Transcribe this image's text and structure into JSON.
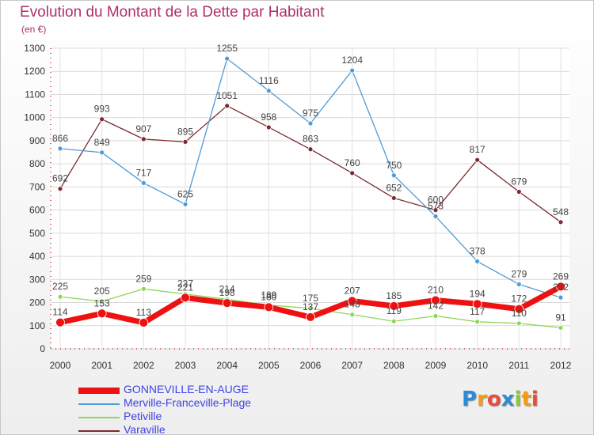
{
  "header": {
    "title": "Evolution du Montant de la Dette par Habitant",
    "subtitle": "(en €)"
  },
  "logo": {
    "letters": [
      "P",
      "r",
      "o",
      "x",
      "i",
      "t",
      "i"
    ],
    "colors": [
      "#2c8bd6",
      "#f39c12",
      "#e74c3c",
      "#2c8bd6",
      "#8dc63f",
      "#f39c12",
      "#e74c3c"
    ]
  },
  "chart_data": {
    "type": "line",
    "title": "Evolution du Montant de la Dette par Habitant",
    "subtitle": "(en €)",
    "xlabel": "",
    "ylabel": "",
    "categories": [
      "2000",
      "2001",
      "2002",
      "2003",
      "2004",
      "2005",
      "2006",
      "2007",
      "2008",
      "2009",
      "2010",
      "2011",
      "2012"
    ],
    "ylim": [
      0,
      1300
    ],
    "yticks": [
      0,
      100,
      200,
      300,
      400,
      500,
      600,
      700,
      800,
      900,
      1000,
      1100,
      1200,
      1300
    ],
    "grid": true,
    "legend_position": "bottom",
    "series": [
      {
        "name": "Varaville",
        "color": "#7b2a2f",
        "values": [
          692,
          993,
          907,
          895,
          1051,
          958,
          863,
          760,
          652,
          600,
          817,
          679,
          548
        ]
      },
      {
        "name": "Merville-Franceville-Plage",
        "color": "#4f9bd6",
        "values": [
          866,
          849,
          717,
          625,
          1255,
          1116,
          975,
          1204,
          750,
          573,
          378,
          279,
          222
        ]
      },
      {
        "name": "Petiville",
        "color": "#8fd655",
        "values": [
          225,
          205,
          259,
          237,
          214,
          189,
          175,
          148,
          119,
          142,
          117,
          110,
          91
        ]
      },
      {
        "name": "GONNEVILLE-EN-AUGE",
        "color": "#ee1111",
        "values": [
          114,
          153,
          113,
          221,
          198,
          180,
          137,
          207,
          185,
          210,
          194,
          172,
          269
        ]
      }
    ],
    "legend_order": [
      "GONNEVILLE-EN-AUGE",
      "Merville-Franceville-Plage",
      "Petiville",
      "Varaville"
    ]
  }
}
